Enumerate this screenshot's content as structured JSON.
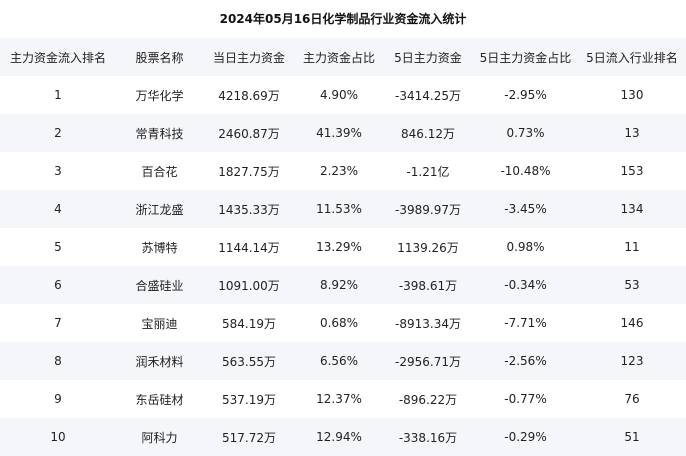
{
  "chart_data": {
    "type": "table",
    "title": "2024年05月16日化学制品行业资金流入统计",
    "columns": [
      "主力资金流入排名",
      "股票名称",
      "当日主力资金",
      "主力资金占比",
      "5日主力资金",
      "5日主力资金占比",
      "5日流入行业排名"
    ],
    "rows": [
      [
        "1",
        "万华化学",
        "4218.69万",
        "4.90%",
        "-3414.25万",
        "-2.95%",
        "130"
      ],
      [
        "2",
        "常青科技",
        "2460.87万",
        "41.39%",
        "846.12万",
        "0.73%",
        "13"
      ],
      [
        "3",
        "百合花",
        "1827.75万",
        "2.23%",
        "-1.21亿",
        "-10.48%",
        "153"
      ],
      [
        "4",
        "浙江龙盛",
        "1435.33万",
        "11.53%",
        "-3989.97万",
        "-3.45%",
        "134"
      ],
      [
        "5",
        "苏博特",
        "1144.14万",
        "13.29%",
        "1139.26万",
        "0.98%",
        "11"
      ],
      [
        "6",
        "合盛硅业",
        "1091.00万",
        "8.92%",
        "-398.61万",
        "-0.34%",
        "53"
      ],
      [
        "7",
        "宝丽迪",
        "584.19万",
        "0.68%",
        "-8913.34万",
        "-7.71%",
        "146"
      ],
      [
        "8",
        "润禾材料",
        "563.55万",
        "6.56%",
        "-2956.71万",
        "-2.56%",
        "123"
      ],
      [
        "9",
        "东岳硅材",
        "537.19万",
        "12.37%",
        "-896.22万",
        "-0.77%",
        "76"
      ],
      [
        "10",
        "阿科力",
        "517.72万",
        "12.94%",
        "-338.16万",
        "-0.29%",
        "51"
      ]
    ]
  },
  "colors": {
    "header_bg": "#f5f6fa",
    "stripe_bg": "#f5f6fa",
    "text": "#222222"
  }
}
